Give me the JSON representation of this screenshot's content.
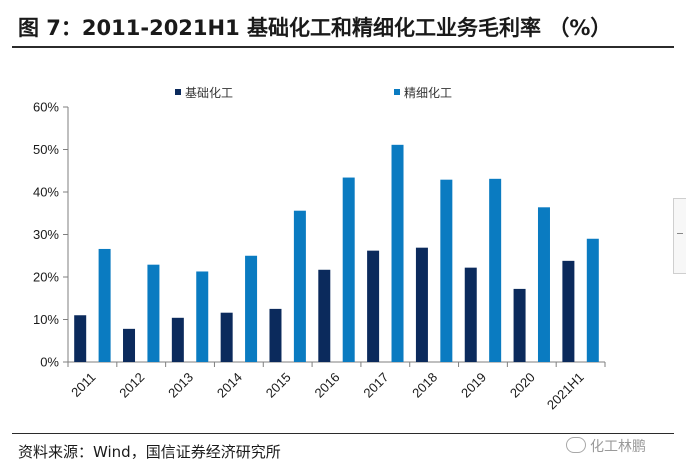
{
  "header": {
    "title": "图 7：2011-2021H1 基础化工和精细化工业务毛利率 （%）"
  },
  "footer": {
    "source": "资料来源：Wind，国信证券经济研究所",
    "watermark": "化工林鹏"
  },
  "icons": {
    "watermark_icon": "wechat-icon",
    "side_handle": "collapse-handle-icon"
  },
  "colors": {
    "series_basic": "#0b2a5c",
    "series_fine": "#0a7bc1",
    "axis": "#7f7f7f"
  },
  "chart_data": {
    "type": "bar",
    "title": "2011-2021H1 基础化工和精细化工业务毛利率 （%）",
    "xlabel": "",
    "ylabel": "",
    "ylim": [
      0,
      60
    ],
    "yticks": [
      "0%",
      "10%",
      "20%",
      "30%",
      "40%",
      "50%",
      "60%"
    ],
    "categories": [
      "2011",
      "2012",
      "2013",
      "2014",
      "2015",
      "2016",
      "2017",
      "2018",
      "2019",
      "2020",
      "2021H1"
    ],
    "series": [
      {
        "name": "基础化工",
        "values": [
          11,
          7.8,
          10.4,
          11.6,
          12.5,
          21.7,
          26.2,
          26.9,
          22.2,
          17.2,
          23.8
        ]
      },
      {
        "name": "精细化工",
        "values": [
          26.6,
          22.9,
          21.3,
          25,
          35.6,
          43.4,
          51.1,
          42.9,
          43.1,
          36.4,
          29
        ]
      }
    ],
    "legend_position": "top"
  }
}
